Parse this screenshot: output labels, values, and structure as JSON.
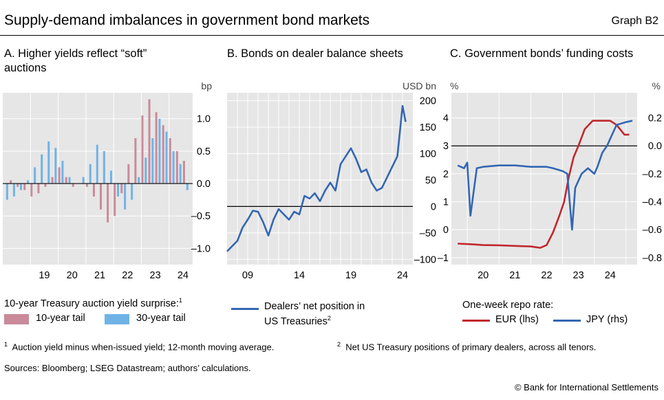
{
  "header": {
    "title": "Supply-demand imbalances in government bond markets",
    "graph_id": "Graph B2"
  },
  "panels": {
    "a": {
      "title_line1": "A. Higher yields reflect “soft”",
      "title_line2": "auctions",
      "unit": "bp",
      "legend_heading": "10-year Treasury auction yield surprise:",
      "legend_heading_sup": "1",
      "legend_10y": "10-year tail",
      "legend_30y": "30-year tail"
    },
    "b": {
      "title": "B. Bonds on dealer balance sheets",
      "unit": "USD bn",
      "legend_line1": "Dealers’ net position in",
      "legend_line2": "US Treasuries",
      "legend_sup": "2"
    },
    "c": {
      "title": "C. Government bonds’ funding costs",
      "unit_left": "%",
      "unit_right": "%",
      "legend_heading": "One-week repo rate:",
      "legend_eur": "EUR (lhs)",
      "legend_jpy": "JPY (rhs)"
    }
  },
  "footnotes": {
    "n1": "1",
    "t1": "Auction yield minus when-issued yield; 12-month moving average.",
    "n2": "2",
    "t2": "Net US Treasury positions of primary dealers, across all tenors."
  },
  "sources": "Sources: Bloomberg; LSEG Datastream; authors’ calculations.",
  "copyright": "© Bank for International Settlements",
  "colors": {
    "tail10": "#c98a99",
    "tail30": "#6fb3e6",
    "dealers": "#3366b3",
    "eur": "#c0272d",
    "jpy": "#3366b3",
    "plot_bg": "#e6e6e6"
  },
  "chart_data": [
    {
      "type": "bar",
      "title": "A. Higher yields reflect “soft” auctions",
      "ylabel": "bp",
      "ylim": [
        -1.25,
        1.4
      ],
      "yticks": [
        -1.0,
        -0.5,
        0.0,
        0.5,
        1.0
      ],
      "ytick_labels": [
        "–1.0",
        "–0.5",
        "0.0",
        "0.5",
        "1.0"
      ],
      "xlim": [
        2018.0,
        2024.85
      ],
      "xticks": [
        2019.5,
        2020.5,
        2021.5,
        2022.5,
        2023.5,
        2024.5
      ],
      "xtick_labels": [
        "19",
        "20",
        "21",
        "22",
        "23",
        "24"
      ],
      "grid": true,
      "legend_position": "bottom",
      "series": [
        {
          "name": "10-year tail",
          "color": "#c98a99",
          "x": [
            2018.0,
            2018.25,
            2018.5,
            2018.75,
            2019.0,
            2019.25,
            2019.5,
            2019.75,
            2020.0,
            2020.25,
            2020.5,
            2020.75,
            2021.0,
            2021.25,
            2021.5,
            2021.75,
            2022.0,
            2022.25,
            2022.5,
            2022.75,
            2023.0,
            2023.25,
            2023.5,
            2023.75,
            2024.0,
            2024.25,
            2024.5
          ],
          "y": [
            0.0,
            0.05,
            -0.05,
            -0.1,
            -0.2,
            -0.15,
            -0.05,
            0.1,
            0.25,
            0.1,
            -0.05,
            0.0,
            -0.05,
            -0.2,
            -0.4,
            -0.6,
            -0.5,
            -0.15,
            0.3,
            0.7,
            1.05,
            1.3,
            1.1,
            0.9,
            0.7,
            0.5,
            0.35
          ]
        },
        {
          "name": "30-year tail",
          "color": "#6fb3e6",
          "x": [
            2018.0,
            2018.25,
            2018.5,
            2018.75,
            2019.0,
            2019.25,
            2019.5,
            2019.75,
            2020.0,
            2020.25,
            2020.5,
            2020.75,
            2021.0,
            2021.25,
            2021.5,
            2021.75,
            2022.0,
            2022.25,
            2022.5,
            2022.75,
            2023.0,
            2023.25,
            2023.5,
            2023.75,
            2024.0,
            2024.25,
            2024.5
          ],
          "y": [
            -0.25,
            -0.2,
            -0.1,
            0.05,
            0.25,
            0.45,
            0.65,
            0.55,
            0.35,
            0.1,
            0.0,
            0.1,
            0.3,
            0.6,
            0.5,
            0.2,
            -0.2,
            -0.4,
            -0.25,
            0.1,
            0.4,
            0.7,
            1.0,
            0.8,
            0.5,
            0.3,
            -0.1
          ]
        }
      ]
    },
    {
      "type": "line",
      "title": "B. Bonds on dealer balance sheets",
      "ylabel": "USD bn",
      "ylim": [
        -110,
        215
      ],
      "yticks": [
        -100,
        -50,
        0,
        50,
        100,
        150,
        200
      ],
      "ytick_labels": [
        "–100",
        "–50",
        "0",
        "50",
        "100",
        "150",
        "200"
      ],
      "xlim": [
        2007.0,
        2025.0
      ],
      "xticks": [
        2009,
        2014,
        2019,
        2024
      ],
      "xtick_labels": [
        "09",
        "14",
        "19",
        "24"
      ],
      "grid": true,
      "legend_position": "bottom",
      "series": [
        {
          "name": "Dealers’ net position in US Treasuries",
          "color": "#3366b3",
          "x": [
            2007.0,
            2007.5,
            2008.0,
            2008.5,
            2009.0,
            2009.5,
            2010.0,
            2010.5,
            2011.0,
            2011.5,
            2012.0,
            2012.5,
            2013.0,
            2013.5,
            2014.0,
            2014.5,
            2015.0,
            2015.5,
            2016.0,
            2016.5,
            2017.0,
            2017.5,
            2018.0,
            2018.5,
            2019.0,
            2019.5,
            2020.0,
            2020.5,
            2021.0,
            2021.5,
            2022.0,
            2022.5,
            2023.0,
            2023.5,
            2024.0,
            2024.3
          ],
          "y": [
            -85,
            -75,
            -65,
            -40,
            -25,
            -8,
            -10,
            -30,
            -55,
            -25,
            -5,
            -15,
            -25,
            -10,
            -15,
            20,
            15,
            25,
            10,
            30,
            45,
            30,
            80,
            95,
            110,
            90,
            65,
            70,
            45,
            30,
            35,
            55,
            75,
            95,
            190,
            160
          ]
        }
      ]
    },
    {
      "type": "line",
      "title": "C. Government bonds’ funding costs",
      "ylabel": "%",
      "ylim": [
        -1.25,
        4.9
      ],
      "yticks": [
        -1,
        0,
        1,
        2,
        3,
        4
      ],
      "ytick_labels": [
        "–1",
        "0",
        "1",
        "2",
        "3",
        "4"
      ],
      "y2label": "%",
      "y2lim": [
        -0.85,
        0.38
      ],
      "y2ticks": [
        -0.8,
        -0.6,
        -0.4,
        -0.2,
        0.0,
        0.2
      ],
      "y2tick_labels": [
        "–0.8",
        "–0.6",
        "–0.4",
        "–0.2",
        "0.0",
        "0.2"
      ],
      "xlim": [
        2019.0,
        2024.85
      ],
      "xticks": [
        2020,
        2021,
        2022,
        2023,
        2024
      ],
      "xtick_labels": [
        "20",
        "21",
        "22",
        "23",
        "24"
      ],
      "grid": true,
      "legend_position": "bottom",
      "series": [
        {
          "name": "EUR (lhs)",
          "axis": "left",
          "color": "#c0272d",
          "x": [
            2019.2,
            2019.6,
            2020.0,
            2020.5,
            2021.0,
            2021.5,
            2021.8,
            2022.0,
            2022.2,
            2022.4,
            2022.55,
            2022.7,
            2022.85,
            2023.0,
            2023.2,
            2023.45,
            2023.7,
            2024.0,
            2024.2,
            2024.45,
            2024.6
          ],
          "y": [
            -0.5,
            -0.52,
            -0.55,
            -0.56,
            -0.58,
            -0.6,
            -0.65,
            -0.55,
            -0.1,
            0.5,
            1.0,
            1.9,
            2.6,
            3.0,
            3.6,
            3.9,
            3.9,
            3.9,
            3.75,
            3.4,
            3.4
          ]
        },
        {
          "name": "JPY (rhs)",
          "axis": "right",
          "color": "#3366b3",
          "x": [
            2019.2,
            2019.4,
            2019.5,
            2019.6,
            2019.8,
            2020.0,
            2020.5,
            2021.0,
            2021.5,
            2022.0,
            2022.2,
            2022.5,
            2022.65,
            2022.8,
            2022.9,
            2023.1,
            2023.3,
            2023.5,
            2023.6,
            2023.75,
            2023.9,
            2024.0,
            2024.2,
            2024.5,
            2024.7
          ],
          "y": [
            -0.14,
            -0.16,
            -0.12,
            -0.5,
            -0.16,
            -0.15,
            -0.14,
            -0.14,
            -0.15,
            -0.15,
            -0.16,
            -0.18,
            -0.2,
            -0.6,
            -0.3,
            -0.2,
            -0.16,
            -0.2,
            -0.15,
            -0.05,
            0.0,
            0.05,
            0.15,
            0.17,
            0.18
          ]
        }
      ]
    }
  ]
}
